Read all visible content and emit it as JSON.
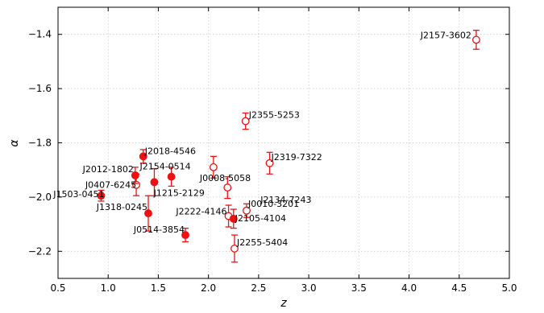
{
  "chart_data": {
    "type": "scatter",
    "title": "",
    "xlabel": "z",
    "ylabel": "α",
    "xlim": [
      0.5,
      5.0
    ],
    "ylim": [
      -2.3,
      -1.3
    ],
    "x_ticks": [
      0.5,
      1.0,
      1.5,
      2.0,
      2.5,
      3.0,
      3.5,
      4.0,
      4.5,
      5.0
    ],
    "x_tick_labels": [
      "0.5",
      "1.0",
      "1.5",
      "2.0",
      "2.5",
      "3.0",
      "3.5",
      "4.0",
      "4.5",
      "5.0"
    ],
    "y_ticks": [
      -2.2,
      -2.0,
      -1.8,
      -1.6,
      -1.4
    ],
    "y_tick_labels": [
      "−2.2",
      "−2.0",
      "−1.8",
      "−1.6",
      "−1.4"
    ],
    "grid": true,
    "color": "#ee1111",
    "points": [
      {
        "label": "J2157-3602",
        "z": 4.67,
        "alpha": -1.42,
        "err": 0.035,
        "filled": false
      },
      {
        "label": "J2355-5253",
        "z": 2.37,
        "alpha": -1.72,
        "err": 0.03,
        "filled": false
      },
      {
        "label": "J2319-7322",
        "z": 2.61,
        "alpha": -1.875,
        "err": 0.04,
        "filled": false
      },
      {
        "label": "J0008-5058",
        "z": 2.05,
        "alpha": -1.89,
        "err": 0.04,
        "filled": false
      },
      {
        "label": "J2134-7243",
        "z": 2.19,
        "alpha": -1.965,
        "err": 0.04,
        "filled": false
      },
      {
        "label": "J0407-6245",
        "z": 1.28,
        "alpha": -1.955,
        "err": 0.04,
        "filled": false
      },
      {
        "label": "J0010-3201",
        "z": 2.38,
        "alpha": -2.05,
        "err": 0.025,
        "filled": false
      },
      {
        "label": "J2222-4146",
        "z": 2.2,
        "alpha": -2.07,
        "err": 0.04,
        "filled": false
      },
      {
        "label": "J2255-5404",
        "z": 2.26,
        "alpha": -2.19,
        "err": 0.05,
        "filled": false
      },
      {
        "label": "J2018-4546",
        "z": 1.35,
        "alpha": -1.85,
        "err": 0.025,
        "filled": true
      },
      {
        "label": "J2012-1802",
        "z": 1.27,
        "alpha": -1.92,
        "err": 0.03,
        "filled": true
      },
      {
        "label": "J2154-0514",
        "z": 1.46,
        "alpha": -1.945,
        "err": 0.05,
        "filled": true
      },
      {
        "label": "J1215-2129",
        "z": 1.63,
        "alpha": -1.925,
        "err": 0.035,
        "filled": true
      },
      {
        "label": "J1503-0451",
        "z": 0.93,
        "alpha": -1.995,
        "err": 0.02,
        "filled": true
      },
      {
        "label": "J1318-0245",
        "z": 1.4,
        "alpha": -2.06,
        "err": 0.065,
        "filled": true
      },
      {
        "label": "J2105-4104",
        "z": 2.25,
        "alpha": -2.08,
        "err": 0.035,
        "filled": true
      },
      {
        "label": "J0514-3854",
        "z": 1.77,
        "alpha": -2.14,
        "err": 0.025,
        "filled": true
      }
    ]
  }
}
